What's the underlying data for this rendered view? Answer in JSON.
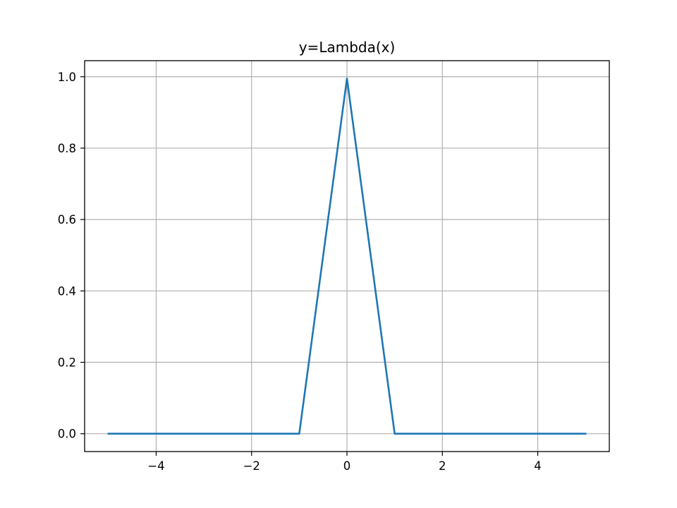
{
  "chart_data": {
    "type": "line",
    "title": "y=Lambda(x)",
    "xlabel": "",
    "ylabel": "",
    "xlim": [
      -5.5,
      5.5
    ],
    "ylim": [
      -0.05,
      1.045
    ],
    "x_ticks": [
      -4,
      -2,
      0,
      2,
      4
    ],
    "x_tick_labels": [
      "−4",
      "−2",
      "0",
      "2",
      "4"
    ],
    "y_ticks": [
      0.0,
      0.2,
      0.4,
      0.6,
      0.8,
      1.0
    ],
    "y_tick_labels": [
      "0.0",
      "0.2",
      "0.4",
      "0.6",
      "0.8",
      "1.0"
    ],
    "grid": true,
    "series": [
      {
        "color": "#1f77b4",
        "x": [
          -5.0,
          -1.0,
          0.0,
          1.0,
          5.0
        ],
        "y": [
          0.0,
          0.0,
          0.995,
          0.0,
          0.0
        ]
      }
    ]
  }
}
